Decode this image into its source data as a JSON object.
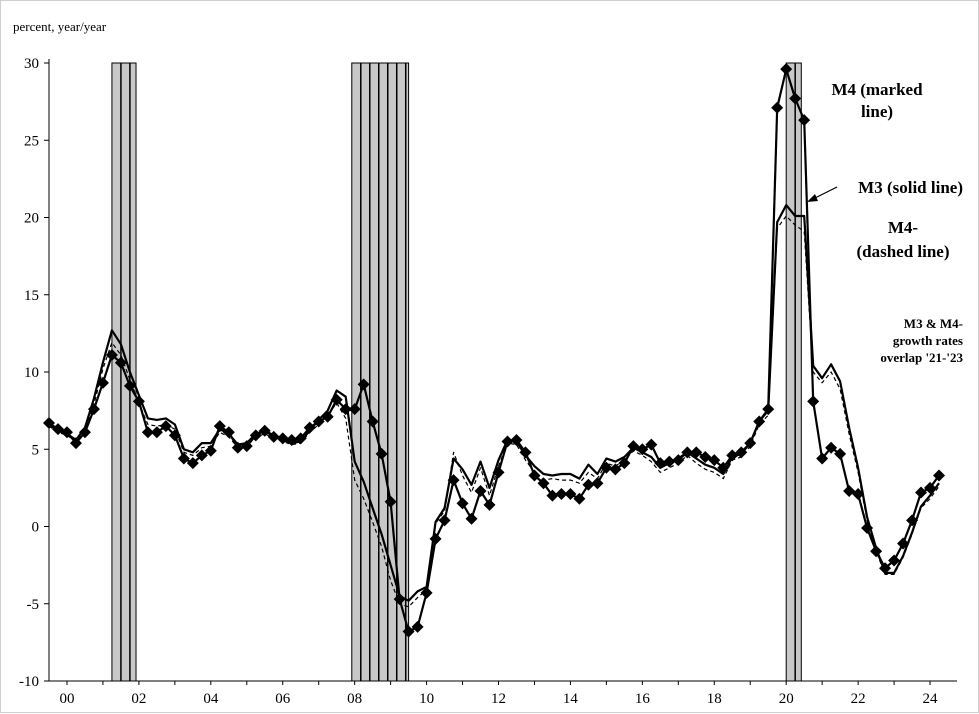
{
  "chart_data": {
    "type": "line",
    "ylabel": "percent, year/year",
    "ylim": [
      -10,
      30
    ],
    "yticks": [
      30,
      25,
      20,
      15,
      10,
      5,
      0,
      -5,
      -10
    ],
    "xlim": [
      1999.5,
      2024.75
    ],
    "xticks": [
      {
        "pos": 2000,
        "label": "00"
      },
      {
        "pos": 2002,
        "label": "02"
      },
      {
        "pos": 2004,
        "label": "04"
      },
      {
        "pos": 2006,
        "label": "06"
      },
      {
        "pos": 2008,
        "label": "08"
      },
      {
        "pos": 2010,
        "label": "10"
      },
      {
        "pos": 2012,
        "label": "12"
      },
      {
        "pos": 2014,
        "label": "14"
      },
      {
        "pos": 2016,
        "label": "16"
      },
      {
        "pos": 2018,
        "label": "18"
      },
      {
        "pos": 2020,
        "label": "20"
      },
      {
        "pos": 2022,
        "label": "22"
      },
      {
        "pos": 2024,
        "label": "24"
      }
    ],
    "recessions": [
      [
        2001.25,
        2001.92
      ],
      [
        2007.92,
        2009.5
      ],
      [
        2020.0,
        2020.42
      ]
    ],
    "series": [
      {
        "name": "M4",
        "style": "marked",
        "x": [
          1999.5,
          1999.75,
          2000.0,
          2000.25,
          2000.5,
          2000.75,
          2001.0,
          2001.25,
          2001.5,
          2001.75,
          2002.0,
          2002.25,
          2002.5,
          2002.75,
          2003.0,
          2003.25,
          2003.5,
          2003.75,
          2004.0,
          2004.25,
          2004.5,
          2004.75,
          2005.0,
          2005.25,
          2005.5,
          2005.75,
          2006.0,
          2006.25,
          2006.5,
          2006.75,
          2007.0,
          2007.25,
          2007.5,
          2007.75,
          2008.0,
          2008.25,
          2008.5,
          2008.75,
          2009.0,
          2009.25,
          2009.5,
          2009.75,
          2010.0,
          2010.25,
          2010.5,
          2010.75,
          2011.0,
          2011.25,
          2011.5,
          2011.75,
          2012.0,
          2012.25,
          2012.5,
          2012.75,
          2013.0,
          2013.25,
          2013.5,
          2013.75,
          2014.0,
          2014.25,
          2014.5,
          2014.75,
          2015.0,
          2015.25,
          2015.5,
          2015.75,
          2016.0,
          2016.25,
          2016.5,
          2016.75,
          2017.0,
          2017.25,
          2017.5,
          2017.75,
          2018.0,
          2018.25,
          2018.5,
          2018.75,
          2019.0,
          2019.25,
          2019.5,
          2019.75,
          2020.0,
          2020.25,
          2020.5,
          2020.75,
          2021.0,
          2021.25,
          2021.5,
          2021.75,
          2022.0,
          2022.25,
          2022.5,
          2022.75,
          2023.0,
          2023.25,
          2023.5,
          2023.75,
          2024.0,
          2024.25,
          2024.5
        ],
        "values": [
          6.7,
          6.3,
          6.1,
          5.4,
          6.1,
          7.6,
          9.3,
          11.1,
          10.6,
          9.1,
          8.1,
          6.1,
          6.1,
          6.5,
          5.9,
          4.4,
          4.1,
          4.6,
          4.9,
          6.5,
          6.1,
          5.1,
          5.2,
          5.9,
          6.2,
          5.8,
          5.7,
          5.6,
          5.7,
          6.4,
          6.8,
          7.1,
          8.2,
          7.6,
          7.6,
          9.2,
          6.8,
          4.7,
          1.6,
          -4.7,
          -6.8,
          -6.5,
          -4.3,
          -0.8,
          0.4,
          3.0,
          1.5,
          0.5,
          2.3,
          1.4,
          3.5,
          5.5,
          5.6,
          4.8,
          3.3,
          2.8,
          2.0,
          2.1,
          2.1,
          1.8,
          2.7,
          2.8,
          3.8,
          3.7,
          4.1,
          5.2,
          5.0,
          5.3,
          4.1,
          4.2,
          4.3,
          4.8,
          4.8,
          4.5,
          4.3,
          3.8,
          4.6,
          4.8,
          5.4,
          6.8,
          7.6,
          27.1,
          29.6,
          27.7,
          26.3,
          8.1,
          4.4,
          5.1,
          4.7,
          2.3,
          2.1,
          -0.1,
          -1.6,
          -2.7,
          -2.2,
          -1.1,
          0.4,
          2.2,
          2.5,
          3.3,
          null
        ]
      },
      {
        "name": "M3",
        "style": "solid",
        "x": [
          1999.5,
          1999.75,
          2000.0,
          2000.25,
          2000.5,
          2000.75,
          2001.0,
          2001.25,
          2001.5,
          2001.75,
          2002.0,
          2002.25,
          2002.5,
          2002.75,
          2003.0,
          2003.25,
          2003.5,
          2003.75,
          2004.0,
          2004.25,
          2004.5,
          2004.75,
          2005.0,
          2005.25,
          2005.5,
          2005.75,
          2006.0,
          2006.25,
          2006.5,
          2006.75,
          2007.0,
          2007.25,
          2007.5,
          2007.75,
          2008.0,
          2008.25,
          2008.5,
          2008.75,
          2009.0,
          2009.25,
          2009.5,
          2009.75,
          2010.0,
          2010.25,
          2010.5,
          2010.75,
          2011.0,
          2011.25,
          2011.5,
          2011.75,
          2012.0,
          2012.25,
          2012.5,
          2012.75,
          2013.0,
          2013.25,
          2013.5,
          2013.75,
          2014.0,
          2014.25,
          2014.5,
          2014.75,
          2015.0,
          2015.25,
          2015.5,
          2015.75,
          2016.0,
          2016.25,
          2016.5,
          2016.75,
          2017.0,
          2017.25,
          2017.5,
          2017.75,
          2018.0,
          2018.25,
          2018.5,
          2018.75,
          2019.0,
          2019.25,
          2019.5,
          2019.75,
          2020.0,
          2020.25,
          2020.5,
          2020.75,
          2021.0,
          2021.25,
          2021.5,
          2021.75,
          2022.0,
          2022.25,
          2022.5,
          2022.75,
          2023.0,
          2023.25,
          2023.5,
          2023.75,
          2024.0,
          2024.25,
          2024.5
        ],
        "values": [
          6.6,
          6.2,
          6.0,
          5.6,
          6.4,
          8.3,
          10.6,
          12.7,
          11.8,
          10.0,
          8.5,
          7.0,
          6.9,
          7.0,
          6.6,
          5.0,
          4.8,
          5.4,
          5.4,
          6.3,
          6.0,
          5.3,
          5.4,
          6.0,
          6.2,
          5.9,
          5.6,
          5.4,
          5.5,
          6.2,
          6.9,
          7.5,
          8.8,
          8.4,
          4.2,
          2.9,
          1.2,
          -0.5,
          -2.5,
          -4.5,
          -4.8,
          -4.2,
          -3.9,
          0.3,
          1.2,
          4.4,
          3.7,
          2.7,
          4.2,
          2.5,
          4.3,
          5.6,
          5.5,
          4.6,
          3.9,
          3.4,
          3.3,
          3.4,
          3.4,
          3.1,
          4.0,
          3.4,
          4.4,
          4.2,
          4.5,
          5.1,
          4.8,
          4.5,
          3.8,
          4.1,
          4.4,
          4.8,
          4.4,
          4.0,
          3.8,
          3.4,
          4.5,
          4.7,
          5.4,
          6.8,
          7.5,
          19.7,
          20.8,
          20.1,
          20.1,
          10.4,
          9.6,
          10.5,
          9.4,
          6.4,
          3.8,
          0.6,
          -1.4,
          -3.0,
          -3.0,
          -1.9,
          -0.4,
          1.3,
          2.0,
          2.8,
          null
        ]
      },
      {
        "name": "M4-",
        "style": "dashed",
        "x": [
          1999.5,
          1999.75,
          2000.0,
          2000.25,
          2000.5,
          2000.75,
          2001.0,
          2001.25,
          2001.5,
          2001.75,
          2002.0,
          2002.25,
          2002.5,
          2002.75,
          2003.0,
          2003.25,
          2003.5,
          2003.75,
          2004.0,
          2004.25,
          2004.5,
          2004.75,
          2005.0,
          2005.25,
          2005.5,
          2005.75,
          2006.0,
          2006.25,
          2006.5,
          2006.75,
          2007.0,
          2007.25,
          2007.5,
          2007.75,
          2008.0,
          2008.25,
          2008.5,
          2008.75,
          2009.0,
          2009.25,
          2009.5,
          2009.75,
          2010.0,
          2010.25,
          2010.5,
          2010.75,
          2011.0,
          2011.25,
          2011.5,
          2011.75,
          2012.0,
          2012.25,
          2012.5,
          2012.75,
          2013.0,
          2013.25,
          2013.5,
          2013.75,
          2014.0,
          2014.25,
          2014.5,
          2014.75,
          2015.0,
          2015.25,
          2015.5,
          2015.75,
          2016.0,
          2016.25,
          2016.5,
          2016.75,
          2017.0,
          2017.25,
          2017.5,
          2017.75,
          2018.0,
          2018.25,
          2018.5,
          2018.75,
          2019.0,
          2019.25,
          2019.5,
          2019.75,
          2020.0,
          2020.25,
          2020.5,
          2020.75,
          2021.0,
          2021.25,
          2021.5,
          2021.75,
          2022.0,
          2022.25,
          2022.5,
          2022.75,
          2023.0,
          2023.25,
          2023.5,
          2023.75,
          2024.0,
          2024.25,
          2024.5
        ],
        "values": [
          6.5,
          6.1,
          5.9,
          5.5,
          6.2,
          7.9,
          10.2,
          11.9,
          11.1,
          9.5,
          8.0,
          6.6,
          6.5,
          6.6,
          6.3,
          4.8,
          4.6,
          5.1,
          5.2,
          6.1,
          5.8,
          5.1,
          5.2,
          5.8,
          6.0,
          5.7,
          5.5,
          5.3,
          5.4,
          6.1,
          6.6,
          7.2,
          8.0,
          7.0,
          3.0,
          1.8,
          0.3,
          -1.3,
          -3.5,
          -5.0,
          -5.2,
          -4.6,
          -4.1,
          0.2,
          1.0,
          4.8,
          3.3,
          2.2,
          3.8,
          2.0,
          3.9,
          5.4,
          5.3,
          4.3,
          3.5,
          3.0,
          3.1,
          3.0,
          3.0,
          2.8,
          3.5,
          3.1,
          4.1,
          3.9,
          4.3,
          4.9,
          4.6,
          4.2,
          3.5,
          3.8,
          4.1,
          4.6,
          4.1,
          3.7,
          3.5,
          3.1,
          4.3,
          4.5,
          5.2,
          6.6,
          7.2,
          19.3,
          20.1,
          19.5,
          19.1,
          10.0,
          9.3,
          10.0,
          8.9,
          6.0,
          3.5,
          0.4,
          -1.6,
          -3.1,
          -3.1,
          -2.0,
          -0.5,
          1.2,
          1.8,
          2.6,
          null
        ]
      }
    ],
    "annotations": [
      {
        "lines": [
          "M4 (marked",
          "line)"
        ]
      },
      {
        "lines": [
          "M3 (solid line)"
        ]
      },
      {
        "lines": [
          "M4-",
          "(dashed line)"
        ]
      },
      {
        "lines": [
          "M3 & M4-",
          "growth rates",
          "overlap '21-'23"
        ]
      }
    ],
    "colors": {
      "line": "#000000",
      "recession_fill": "#c8c8c8",
      "recession_stroke": "#000000"
    },
    "grid": false,
    "legend": "none"
  }
}
